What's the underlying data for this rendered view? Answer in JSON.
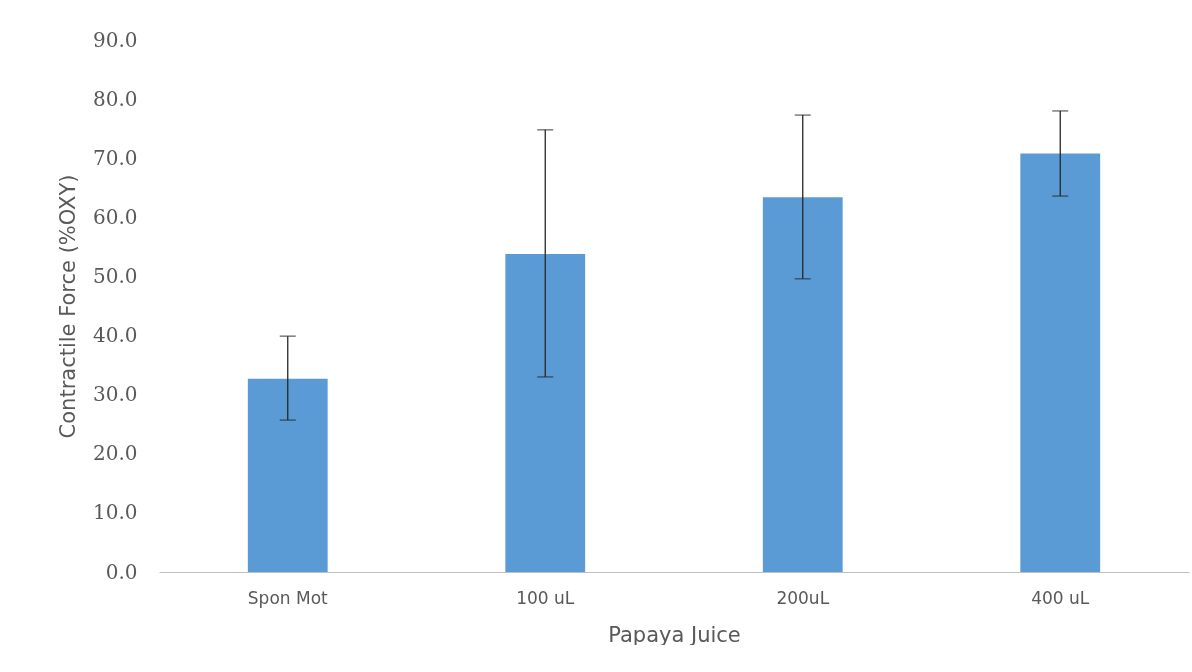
{
  "chart_data": {
    "type": "bar",
    "xlabel": "Papaya Juice",
    "ylabel": "Contractile Force (%OXY)",
    "categories": [
      "Spon Mot",
      "100 uL",
      "200uL",
      "400 uL"
    ],
    "values": [
      32.7,
      53.8,
      63.4,
      70.8
    ],
    "errors": [
      [
        25.7,
        39.9
      ],
      [
        33.0,
        74.8
      ],
      [
        49.6,
        77.3
      ],
      [
        63.6,
        78.0
      ]
    ],
    "color": "#5b9bd5",
    "ylim": [
      0,
      90
    ],
    "yticks": [
      {
        "value": 0,
        "label": "0.0"
      },
      {
        "value": 10,
        "label": "10.0"
      },
      {
        "value": 20,
        "label": "20.0"
      },
      {
        "value": 30,
        "label": "30.0"
      },
      {
        "value": 40,
        "label": "40.0"
      },
      {
        "value": 50,
        "label": "50.0"
      },
      {
        "value": 60,
        "label": "60.0"
      },
      {
        "value": 70,
        "label": "70.0"
      },
      {
        "value": 80,
        "label": "80.0"
      },
      {
        "value": 90,
        "label": "90.0"
      }
    ],
    "grid": false
  }
}
